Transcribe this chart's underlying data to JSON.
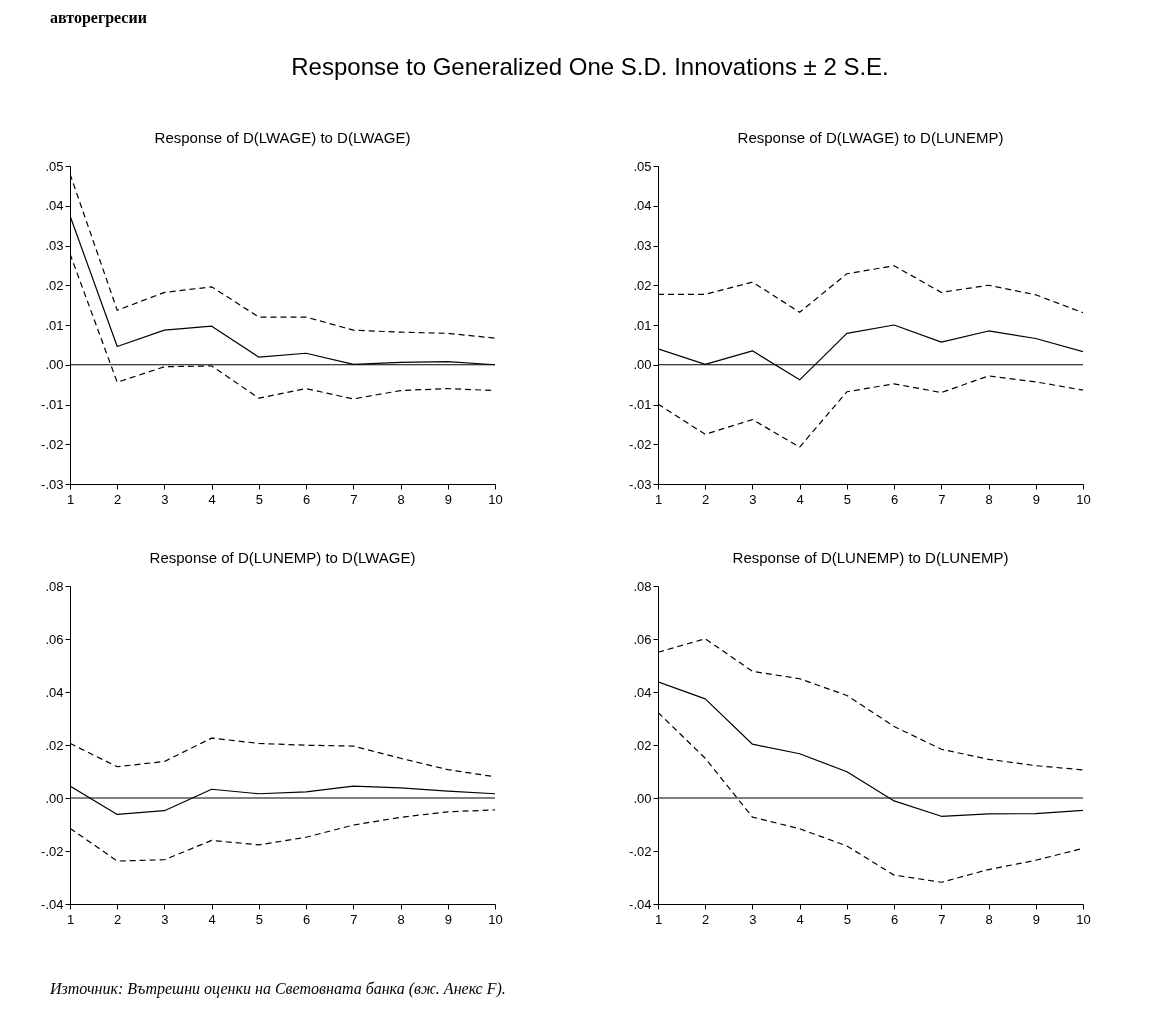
{
  "chart_data": [
    {
      "type": "line",
      "title": "Response of D(LWAGE) to D(LWAGE)",
      "annotations": [
        "авторегресии",
        "Response to Generalized One S.D. Innovations ± 2 S.E."
      ],
      "x": [
        1,
        2,
        3,
        4,
        5,
        6,
        7,
        8,
        9,
        10
      ],
      "xlim": [
        1,
        10
      ],
      "xticks": [
        1,
        2,
        3,
        4,
        5,
        6,
        7,
        8,
        9,
        10
      ],
      "ylim": [
        -0.03,
        0.05
      ],
      "yticks": [
        {
          "value": -0.03,
          "label": "-.03"
        },
        {
          "value": -0.02,
          "label": "-.02"
        },
        {
          "value": -0.01,
          "label": "-.01"
        },
        {
          "value": 0,
          "label": ".00"
        },
        {
          "value": 0.01,
          "label": ".01"
        },
        {
          "value": 0.02,
          "label": ".02"
        },
        {
          "value": 0.03,
          "label": ".03"
        },
        {
          "value": 0.04,
          "label": ".04"
        },
        {
          "value": 0.05,
          "label": ".05"
        }
      ],
      "ref_lines": [
        {
          "axis": "y",
          "value": 0,
          "color": "#000000"
        }
      ],
      "series": [
        {
          "color": "#000000",
          "line_style": "dashed",
          "values": [
            0.048,
            0.0137,
            0.0182,
            0.0196,
            0.012,
            0.012,
            0.0087,
            0.0082,
            0.0079,
            0.0067
          ]
        },
        {
          "color": "#000000",
          "line_style": "solid",
          "values": [
            0.0375,
            0.0046,
            0.0087,
            0.0097,
            0.0019,
            0.0029,
            0.0001,
            0.0006,
            0.0008,
            0.0
          ]
        },
        {
          "color": "#000000",
          "line_style": "dashed",
          "values": [
            0.0279,
            -0.0044,
            -0.0005,
            -0.0003,
            -0.0084,
            -0.006,
            -0.0086,
            -0.0065,
            -0.006,
            -0.0065
          ]
        }
      ]
    },
    {
      "type": "line",
      "title": "Response of D(LWAGE) to D(LUNEMP)",
      "x": [
        1,
        2,
        3,
        4,
        5,
        6,
        7,
        8,
        9,
        10
      ],
      "xlim": [
        1,
        10
      ],
      "xticks": [
        1,
        2,
        3,
        4,
        5,
        6,
        7,
        8,
        9,
        10
      ],
      "ylim": [
        -0.03,
        0.05
      ],
      "yticks": [
        {
          "value": -0.03,
          "label": "-.03"
        },
        {
          "value": -0.02,
          "label": "-.02"
        },
        {
          "value": -0.01,
          "label": "-.01"
        },
        {
          "value": 0,
          "label": ".00"
        },
        {
          "value": 0.01,
          "label": ".01"
        },
        {
          "value": 0.02,
          "label": ".02"
        },
        {
          "value": 0.03,
          "label": ".03"
        },
        {
          "value": 0.04,
          "label": ".04"
        },
        {
          "value": 0.05,
          "label": ".05"
        }
      ],
      "ref_lines": [
        {
          "axis": "y",
          "value": 0,
          "color": "#000000"
        }
      ],
      "series": [
        {
          "color": "#000000",
          "line_style": "dashed",
          "values": [
            0.0177,
            0.0177,
            0.0208,
            0.0132,
            0.0229,
            0.0249,
            0.0182,
            0.02,
            0.0176,
            0.0131
          ]
        },
        {
          "color": "#000000",
          "line_style": "solid",
          "values": [
            0.004,
            0.0001,
            0.0035,
            -0.0038,
            0.0079,
            0.01,
            0.0057,
            0.0085,
            0.0066,
            0.0033
          ]
        },
        {
          "color": "#000000",
          "line_style": "dashed",
          "values": [
            -0.0099,
            -0.0175,
            -0.0138,
            -0.0207,
            -0.0068,
            -0.0048,
            -0.007,
            -0.0028,
            -0.0043,
            -0.0064
          ]
        }
      ]
    },
    {
      "type": "line",
      "title": "Response of D(LUNEMP) to D(LWAGE)",
      "x": [
        1,
        2,
        3,
        4,
        5,
        6,
        7,
        8,
        9,
        10
      ],
      "xlim": [
        1,
        10
      ],
      "xticks": [
        1,
        2,
        3,
        4,
        5,
        6,
        7,
        8,
        9,
        10
      ],
      "ylim": [
        -0.04,
        0.08
      ],
      "yticks": [
        {
          "value": -0.04,
          "label": "-.04"
        },
        {
          "value": -0.02,
          "label": "-.02"
        },
        {
          "value": 0,
          "label": ".00"
        },
        {
          "value": 0.02,
          "label": ".02"
        },
        {
          "value": 0.04,
          "label": ".04"
        },
        {
          "value": 0.06,
          "label": ".06"
        },
        {
          "value": 0.08,
          "label": ".08"
        }
      ],
      "ref_lines": [
        {
          "axis": "y",
          "value": 0,
          "color": "#000000"
        }
      ],
      "series": [
        {
          "color": "#000000",
          "line_style": "dashed",
          "values": [
            0.0206,
            0.0118,
            0.0138,
            0.0226,
            0.0206,
            0.0199,
            0.0196,
            0.015,
            0.0107,
            0.008
          ]
        },
        {
          "color": "#000000",
          "line_style": "solid",
          "values": [
            0.0045,
            -0.0062,
            -0.0048,
            0.0033,
            0.0016,
            0.0023,
            0.0045,
            0.0038,
            0.0026,
            0.0016
          ]
        },
        {
          "color": "#000000",
          "line_style": "dashed",
          "values": [
            -0.0114,
            -0.0238,
            -0.0233,
            -0.016,
            -0.0177,
            -0.0148,
            -0.0102,
            -0.0073,
            -0.0052,
            -0.0045
          ]
        }
      ]
    },
    {
      "type": "line",
      "title": "Response of D(LUNEMP) to D(LUNEMP)",
      "annotations": [
        "Източник: Вътрешни оценки на Световната банка (вж. Анекс F)."
      ],
      "x": [
        1,
        2,
        3,
        4,
        5,
        6,
        7,
        8,
        9,
        10
      ],
      "xlim": [
        1,
        10
      ],
      "xticks": [
        1,
        2,
        3,
        4,
        5,
        6,
        7,
        8,
        9,
        10
      ],
      "ylim": [
        -0.04,
        0.08
      ],
      "yticks": [
        {
          "value": -0.04,
          "label": "-.04"
        },
        {
          "value": -0.02,
          "label": "-.02"
        },
        {
          "value": 0,
          "label": ".00"
        },
        {
          "value": 0.02,
          "label": ".02"
        },
        {
          "value": 0.04,
          "label": ".04"
        },
        {
          "value": 0.06,
          "label": ".06"
        },
        {
          "value": 0.08,
          "label": ".08"
        }
      ],
      "ref_lines": [
        {
          "axis": "y",
          "value": 0,
          "color": "#000000"
        }
      ],
      "series": [
        {
          "color": "#000000",
          "line_style": "dashed",
          "values": [
            0.055,
            0.0601,
            0.0478,
            0.045,
            0.0387,
            0.027,
            0.0184,
            0.0146,
            0.0122,
            0.0106
          ]
        },
        {
          "color": "#000000",
          "line_style": "solid",
          "values": [
            0.0438,
            0.0374,
            0.0203,
            0.0167,
            0.0099,
            -0.0011,
            -0.0069,
            -0.006,
            -0.0059,
            -0.0047
          ]
        },
        {
          "color": "#000000",
          "line_style": "dashed",
          "values": [
            0.0323,
            0.015,
            -0.0072,
            -0.0116,
            -0.0181,
            -0.0291,
            -0.0318,
            -0.027,
            -0.0235,
            -0.019
          ]
        }
      ]
    }
  ]
}
